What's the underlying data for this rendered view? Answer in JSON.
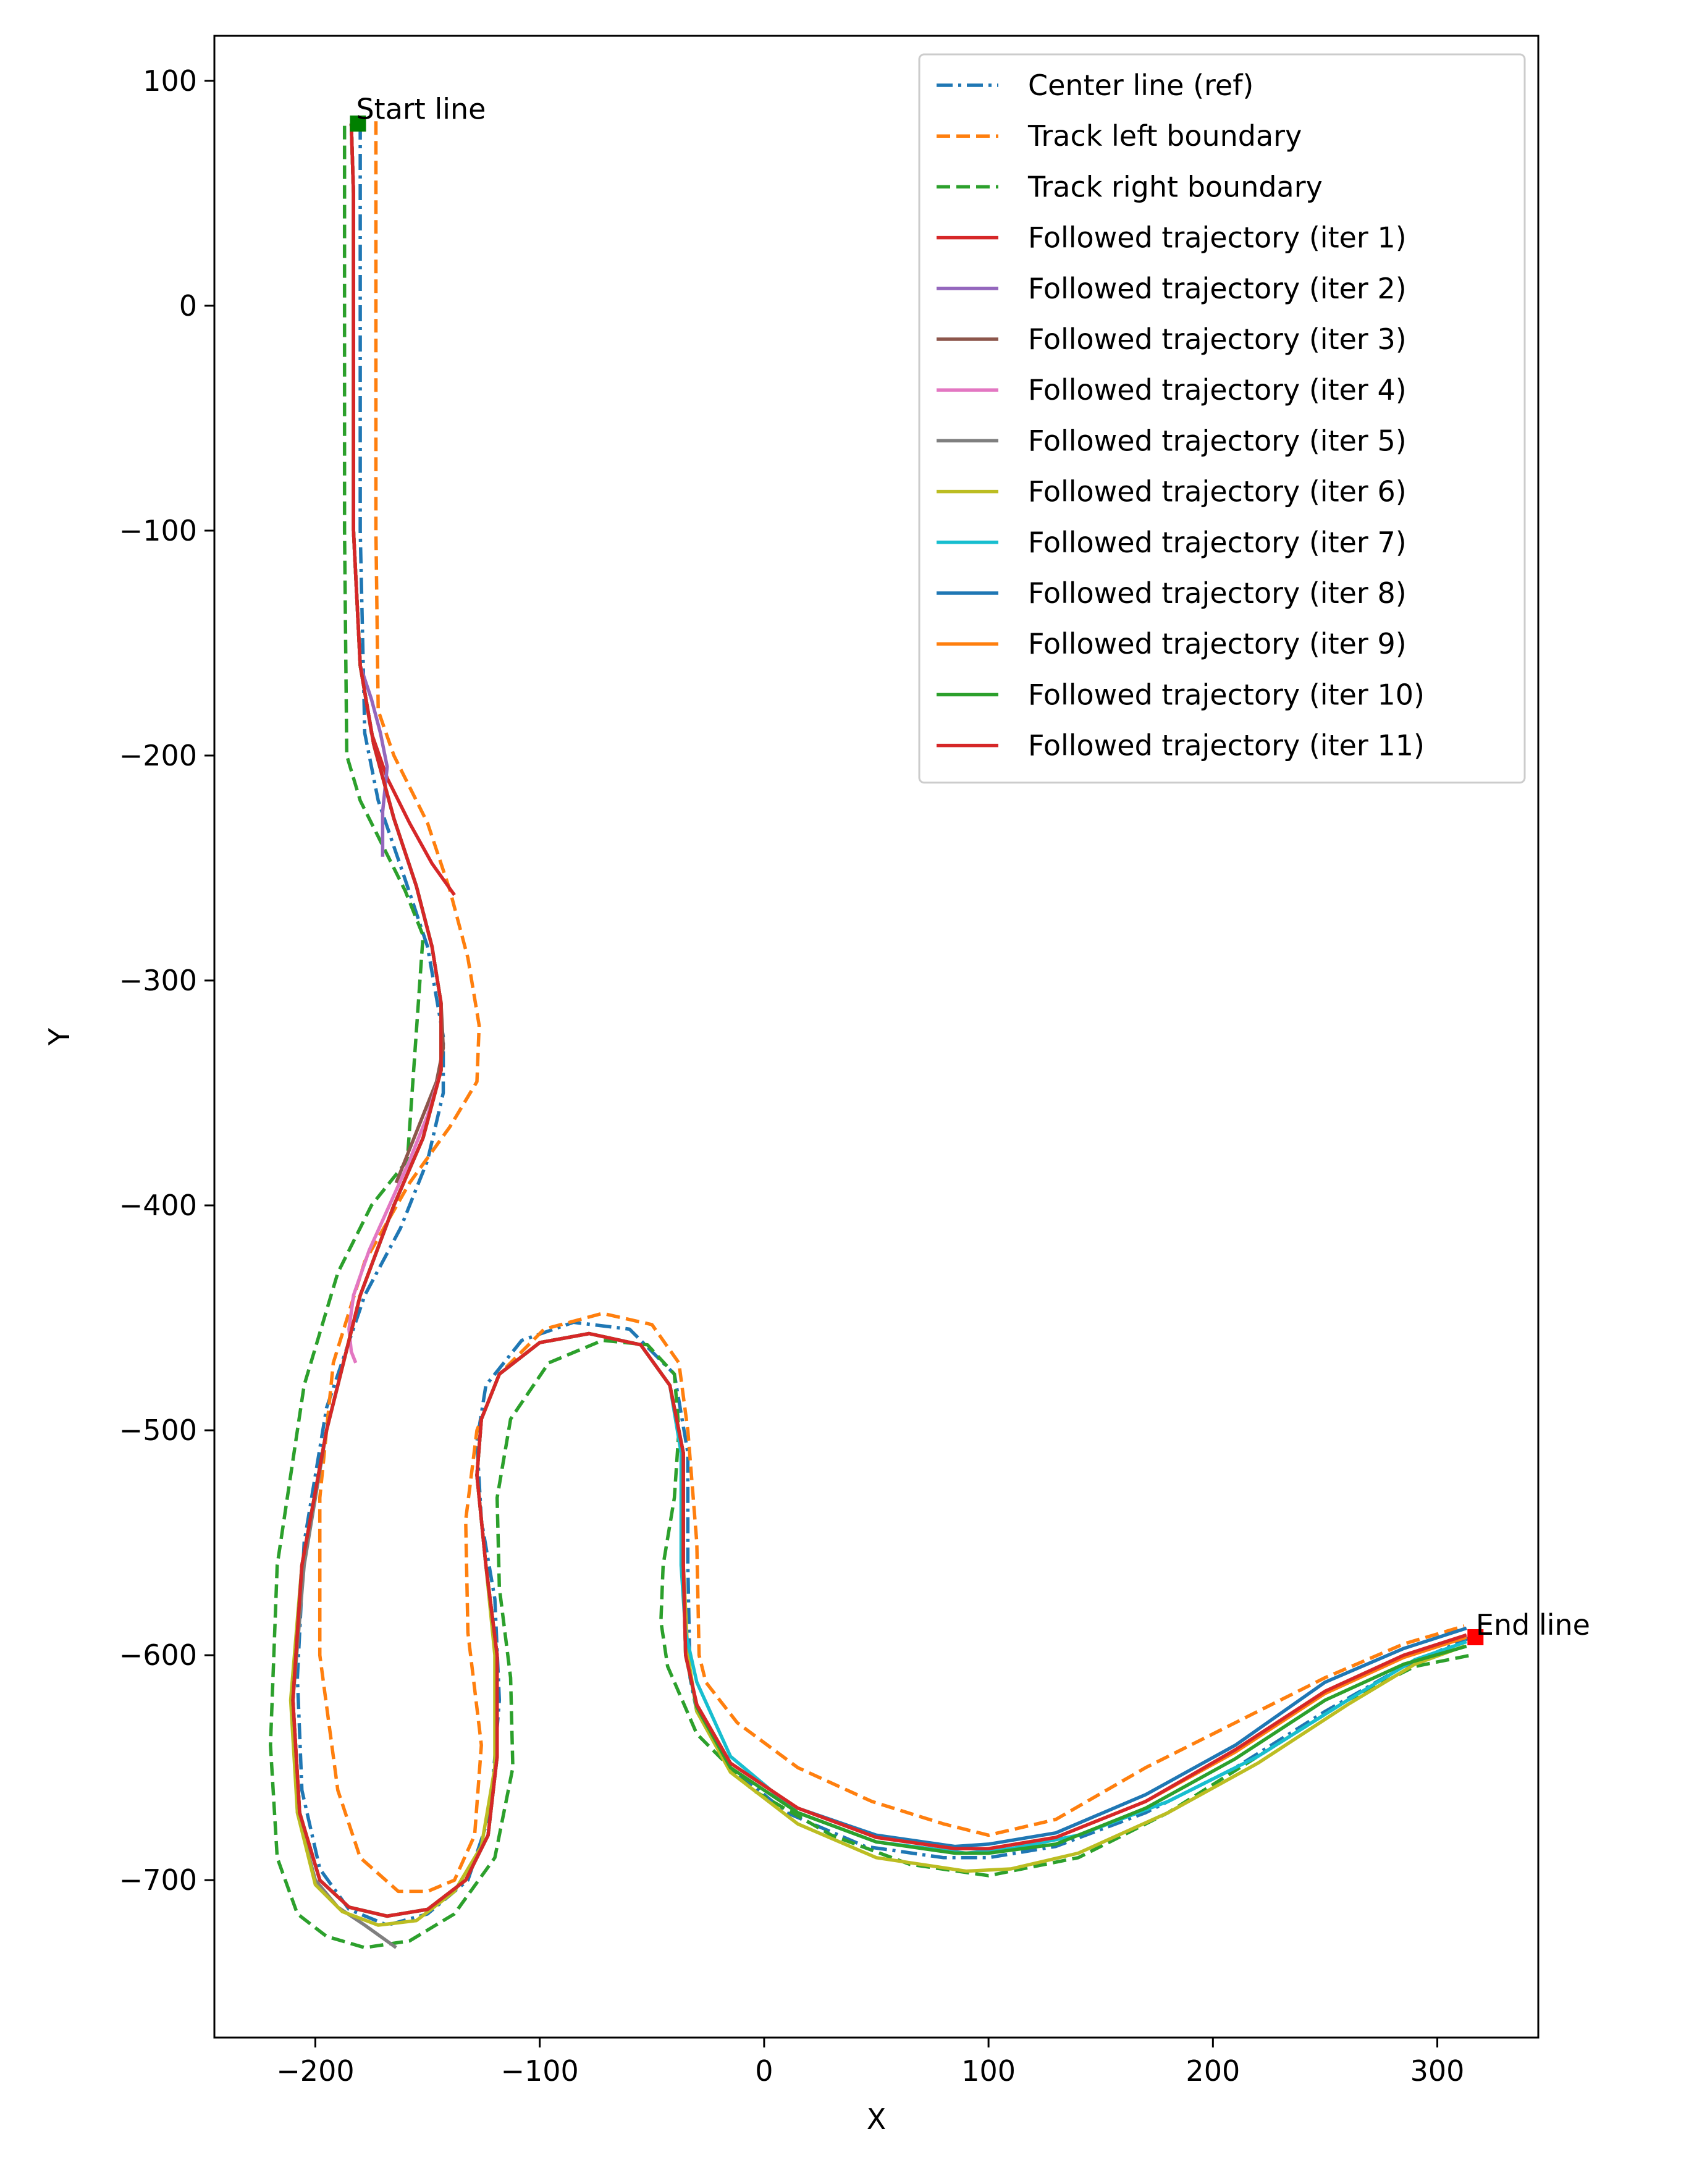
{
  "chart_data": {
    "type": "line",
    "title": "",
    "xlabel": "X",
    "ylabel": "Y",
    "xlim": [
      -245,
      345
    ],
    "ylim": [
      -770,
      120
    ],
    "xticks": [
      -200,
      -100,
      0,
      100,
      200,
      300
    ],
    "yticks": [
      100,
      0,
      -100,
      -200,
      -300,
      -400,
      -500,
      -600,
      -700
    ],
    "xtick_labels": [
      "−200",
      "−100",
      "0",
      "100",
      "200",
      "300"
    ],
    "ytick_labels": [
      "100",
      "0",
      "−100",
      "−200",
      "−300",
      "−400",
      "−500",
      "−600",
      "−700"
    ],
    "grid": false,
    "legend_position": "top-right",
    "annotations": [
      {
        "text": "Start line",
        "x": -181,
        "y": 82
      },
      {
        "text": "End line",
        "x": 318,
        "y": -592
      }
    ],
    "markers": [
      {
        "name": "start-marker",
        "x": -181,
        "y": 81,
        "color": "#008000"
      },
      {
        "name": "end-marker",
        "x": 317,
        "y": -592,
        "color": "#ff0000"
      }
    ],
    "series": [
      {
        "name": "Center line (ref)",
        "color": "#1f77b4",
        "style": "dashdot",
        "x": [
          -180,
          -180,
          -180,
          -178,
          -172,
          -160,
          -150,
          -143,
          -143,
          -150,
          -162,
          -178,
          -195,
          -205,
          -208,
          -206,
          -198,
          -185,
          -168,
          -150,
          -132,
          -122,
          -118,
          -120,
          -126,
          -128,
          -124,
          -108,
          -85,
          -60,
          -40,
          -34,
          -34,
          -33,
          -30,
          -15,
          10,
          45,
          80,
          100,
          130,
          170,
          210,
          250,
          285,
          315
        ],
        "y": [
          81,
          50,
          -100,
          -190,
          -220,
          -255,
          -285,
          -325,
          -350,
          -380,
          -410,
          -440,
          -490,
          -550,
          -610,
          -660,
          -695,
          -713,
          -720,
          -715,
          -700,
          -670,
          -620,
          -575,
          -540,
          -505,
          -480,
          -460,
          -452,
          -455,
          -475,
          -510,
          -560,
          -610,
          -625,
          -650,
          -670,
          -685,
          -690,
          -690,
          -685,
          -670,
          -650,
          -625,
          -605,
          -592
        ]
      },
      {
        "name": "Track left boundary",
        "color": "#ff7f0e",
        "style": "dashed",
        "x": [
          -173,
          -173,
          -173,
          -172,
          -165,
          -150,
          -140,
          -132,
          -127,
          -128,
          -140,
          -158,
          -178,
          -192,
          -198,
          -198,
          -190,
          -180,
          -163,
          -150,
          -138,
          -129,
          -126,
          -132,
          -133,
          -128,
          -118,
          -98,
          -72,
          -50,
          -38,
          -34,
          -30,
          -29,
          -26,
          -12,
          15,
          48,
          80,
          100,
          130,
          170,
          210,
          250,
          285,
          312
        ],
        "y": [
          82,
          50,
          -100,
          -180,
          -200,
          -230,
          -260,
          -290,
          -320,
          -345,
          -365,
          -390,
          -425,
          -470,
          -530,
          -600,
          -660,
          -690,
          -705,
          -705,
          -700,
          -680,
          -640,
          -590,
          -540,
          -500,
          -475,
          -455,
          -448,
          -453,
          -470,
          -500,
          -550,
          -600,
          -612,
          -630,
          -650,
          -665,
          -675,
          -680,
          -673,
          -650,
          -630,
          -610,
          -595,
          -587
        ]
      },
      {
        "name": "Track right boundary",
        "color": "#2ca02c",
        "style": "dashed",
        "x": [
          -187,
          -187,
          -187,
          -186,
          -180,
          -170,
          -160,
          -152,
          -159,
          -175,
          -190,
          -205,
          -217,
          -220,
          -217,
          -208,
          -195,
          -178,
          -158,
          -138,
          -120,
          -112,
          -113,
          -118,
          -119,
          -113,
          -96,
          -72,
          -52,
          -40,
          -38,
          -40,
          -45,
          -46,
          -43,
          -30,
          -5,
          30,
          65,
          100,
          140,
          180,
          220,
          260,
          290,
          315
        ],
        "y": [
          80,
          50,
          -100,
          -200,
          -220,
          -240,
          -260,
          -280,
          -380,
          -400,
          -430,
          -480,
          -560,
          -640,
          -690,
          -715,
          -725,
          -730,
          -727,
          -715,
          -690,
          -650,
          -610,
          -570,
          -530,
          -495,
          -470,
          -460,
          -462,
          -475,
          -500,
          -530,
          -560,
          -585,
          -605,
          -635,
          -660,
          -680,
          -693,
          -698,
          -690,
          -670,
          -645,
          -620,
          -605,
          -600
        ]
      },
      {
        "name": "Followed trajectory (iter 1)",
        "color": "#d62728",
        "style": "solid",
        "x": [
          -184,
          -183,
          -183,
          -180,
          -175,
          -168,
          -158,
          -148,
          -138
        ],
        "y": [
          81,
          50,
          -100,
          -160,
          -190,
          -210,
          -230,
          -248,
          -262
        ]
      },
      {
        "name": "Followed trajectory (iter 2)",
        "color": "#9467bd",
        "style": "solid",
        "x": [
          -184,
          -183,
          -183,
          -180,
          -175,
          -171,
          -168,
          -170,
          -170
        ],
        "y": [
          81,
          50,
          -100,
          -160,
          -175,
          -190,
          -205,
          -225,
          -245
        ]
      },
      {
        "name": "Followed trajectory (iter 3)",
        "color": "#8c564b",
        "style": "solid",
        "x": [
          -184,
          -183,
          -183,
          -180,
          -174,
          -165,
          -155,
          -148,
          -144,
          -143,
          -146,
          -152,
          -158,
          -164
        ],
        "y": [
          81,
          50,
          -100,
          -160,
          -195,
          -228,
          -258,
          -285,
          -310,
          -330,
          -345,
          -360,
          -375,
          -390
        ]
      },
      {
        "name": "Followed trajectory (iter 4)",
        "color": "#e377c2",
        "style": "solid",
        "x": [
          -184,
          -183,
          -183,
          -180,
          -174,
          -165,
          -155,
          -148,
          -144,
          -144,
          -150,
          -158,
          -167,
          -176,
          -183,
          -185,
          -184,
          -182
        ],
        "y": [
          81,
          50,
          -100,
          -160,
          -195,
          -228,
          -258,
          -285,
          -310,
          -340,
          -360,
          -380,
          -400,
          -420,
          -440,
          -455,
          -465,
          -470
        ]
      },
      {
        "name": "Followed trajectory (iter 5)",
        "color": "#7f7f7f",
        "style": "solid",
        "x": [
          -184,
          -183,
          -183,
          -180,
          -174,
          -165,
          -155,
          -148,
          -144,
          -144,
          -152,
          -165,
          -180,
          -195,
          -205,
          -210,
          -208,
          -200,
          -190,
          -178,
          -164
        ],
        "y": [
          81,
          50,
          -100,
          -160,
          -195,
          -228,
          -258,
          -285,
          -310,
          -340,
          -370,
          -400,
          -440,
          -500,
          -560,
          -620,
          -670,
          -700,
          -712,
          -720,
          -730
        ]
      },
      {
        "name": "Followed trajectory (iter 6)",
        "color": "#bcbd22",
        "style": "solid",
        "x": [
          -184,
          -183,
          -183,
          -180,
          -174,
          -165,
          -155,
          -148,
          -144,
          -144,
          -152,
          -165,
          -180,
          -195,
          -206,
          -211,
          -208,
          -200,
          -188,
          -172,
          -155,
          -138,
          -126,
          -120,
          -120,
          -124,
          -128,
          -126,
          -118,
          -100,
          -78,
          -55,
          -42,
          -36,
          -36,
          -34,
          -30,
          -15,
          15,
          50,
          90,
          110,
          140,
          180,
          220,
          260,
          290,
          312
        ],
        "y": [
          81,
          50,
          -100,
          -160,
          -195,
          -228,
          -258,
          -285,
          -310,
          -340,
          -370,
          -400,
          -440,
          -500,
          -560,
          -620,
          -670,
          -702,
          -714,
          -720,
          -718,
          -705,
          -685,
          -650,
          -600,
          -560,
          -520,
          -495,
          -475,
          -461,
          -457,
          -462,
          -480,
          -510,
          -560,
          -600,
          -625,
          -652,
          -675,
          -690,
          -696,
          -695,
          -688,
          -670,
          -648,
          -622,
          -604,
          -596
        ]
      },
      {
        "name": "Followed trajectory (iter 7)",
        "color": "#17becf",
        "style": "solid",
        "x": [
          -184,
          -183,
          -183,
          -180,
          -174,
          -165,
          -155,
          -148,
          -144,
          -144,
          -152,
          -165,
          -180,
          -195,
          -206,
          -210,
          -207,
          -198,
          -185,
          -168,
          -150,
          -133,
          -123,
          -119,
          -119,
          -124,
          -128,
          -126,
          -118,
          -100,
          -78,
          -55,
          -42,
          -37,
          -37,
          -35,
          -30,
          -15,
          15,
          50,
          90,
          110,
          140,
          180,
          220,
          260,
          290,
          313
        ],
        "y": [
          81,
          50,
          -100,
          -160,
          -195,
          -228,
          -258,
          -285,
          -310,
          -340,
          -370,
          -400,
          -440,
          -500,
          -560,
          -620,
          -670,
          -700,
          -712,
          -716,
          -713,
          -700,
          -680,
          -645,
          -600,
          -560,
          -520,
          -495,
          -475,
          -461,
          -457,
          -462,
          -480,
          -510,
          -560,
          -590,
          -612,
          -645,
          -670,
          -683,
          -688,
          -686,
          -680,
          -665,
          -645,
          -620,
          -602,
          -594
        ]
      },
      {
        "name": "Followed trajectory (iter 8)",
        "color": "#1f77b4",
        "style": "solid",
        "x": [
          -184,
          -183,
          -183,
          -180,
          -174,
          -165,
          -155,
          -148,
          -144,
          -144,
          -152,
          -165,
          -180,
          -195,
          -206,
          -210,
          -207,
          -198,
          -185,
          -168,
          -150,
          -133,
          -123,
          -119,
          -119,
          -124,
          -128,
          -126,
          -118,
          -100,
          -78,
          -55,
          -42,
          -36,
          -36,
          -35,
          -30,
          -15,
          15,
          50,
          85,
          100,
          130,
          170,
          210,
          250,
          285,
          313
        ],
        "y": [
          81,
          50,
          -100,
          -160,
          -195,
          -228,
          -258,
          -285,
          -310,
          -340,
          -370,
          -400,
          -440,
          -500,
          -560,
          -620,
          -670,
          -700,
          -712,
          -716,
          -713,
          -700,
          -680,
          -645,
          -600,
          -560,
          -520,
          -495,
          -475,
          -461,
          -457,
          -462,
          -480,
          -510,
          -560,
          -600,
          -622,
          -648,
          -668,
          -680,
          -685,
          -684,
          -679,
          -662,
          -640,
          -612,
          -597,
          -588
        ]
      },
      {
        "name": "Followed trajectory (iter 9)",
        "color": "#ff7f0e",
        "style": "solid",
        "x": [
          -184,
          -183,
          -183,
          -180,
          -174,
          -165,
          -155,
          -148,
          -144,
          -144,
          -152,
          -165,
          -180,
          -195,
          -206,
          -210,
          -207,
          -198,
          -185,
          -168,
          -150,
          -133,
          -123,
          -119,
          -119,
          -124,
          -128,
          -126,
          -118,
          -100,
          -78,
          -55,
          -42,
          -36,
          -36,
          -35,
          -30,
          -15,
          15,
          50,
          85,
          100,
          130,
          170,
          210,
          250,
          285,
          313
        ],
        "y": [
          81,
          50,
          -100,
          -160,
          -195,
          -228,
          -258,
          -285,
          -310,
          -340,
          -370,
          -400,
          -440,
          -500,
          -560,
          -620,
          -670,
          -700,
          -712,
          -716,
          -713,
          -700,
          -680,
          -645,
          -600,
          -560,
          -520,
          -495,
          -475,
          -461,
          -457,
          -462,
          -480,
          -510,
          -560,
          -600,
          -622,
          -648,
          -668,
          -681,
          -686,
          -686,
          -681,
          -665,
          -643,
          -617,
          -601,
          -592
        ]
      },
      {
        "name": "Followed trajectory (iter 10)",
        "color": "#2ca02c",
        "style": "solid",
        "x": [
          -184,
          -183,
          -183,
          -180,
          -174,
          -165,
          -155,
          -148,
          -144,
          -144,
          -152,
          -165,
          -180,
          -195,
          -206,
          -210,
          -207,
          -198,
          -185,
          -168,
          -150,
          -133,
          -123,
          -119,
          -119,
          -124,
          -128,
          -126,
          -118,
          -100,
          -78,
          -55,
          -42,
          -36,
          -36,
          -35,
          -30,
          -15,
          15,
          50,
          85,
          100,
          130,
          170,
          210,
          250,
          285,
          313
        ],
        "y": [
          81,
          50,
          -100,
          -160,
          -195,
          -228,
          -258,
          -285,
          -310,
          -340,
          -370,
          -400,
          -440,
          -500,
          -560,
          -620,
          -670,
          -700,
          -712,
          -716,
          -713,
          -700,
          -680,
          -645,
          -600,
          -560,
          -520,
          -495,
          -475,
          -461,
          -457,
          -462,
          -480,
          -510,
          -560,
          -600,
          -623,
          -650,
          -670,
          -683,
          -688,
          -688,
          -684,
          -668,
          -646,
          -620,
          -604,
          -596
        ]
      },
      {
        "name": "Followed trajectory (iter 11)",
        "color": "#d62728",
        "style": "solid",
        "x": [
          -184,
          -183,
          -183,
          -180,
          -174,
          -165,
          -155,
          -148,
          -144,
          -144,
          -152,
          -165,
          -180,
          -195,
          -206,
          -210,
          -207,
          -198,
          -185,
          -168,
          -150,
          -133,
          -123,
          -119,
          -119,
          -124,
          -128,
          -126,
          -118,
          -100,
          -78,
          -55,
          -42,
          -36,
          -36,
          -35,
          -30,
          -15,
          15,
          50,
          85,
          100,
          130,
          170,
          210,
          250,
          285,
          313
        ],
        "y": [
          81,
          50,
          -100,
          -160,
          -195,
          -228,
          -258,
          -285,
          -310,
          -340,
          -370,
          -400,
          -440,
          -500,
          -560,
          -620,
          -670,
          -700,
          -712,
          -716,
          -713,
          -700,
          -680,
          -645,
          -600,
          -560,
          -520,
          -495,
          -475,
          -461,
          -457,
          -462,
          -480,
          -510,
          -560,
          -600,
          -622,
          -648,
          -668,
          -681,
          -686,
          -686,
          -681,
          -665,
          -642,
          -616,
          -600,
          -591
        ]
      }
    ]
  }
}
